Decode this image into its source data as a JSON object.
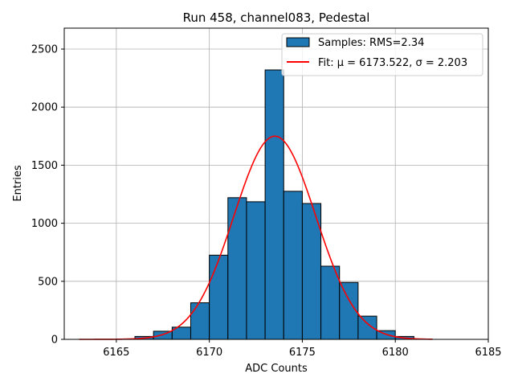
{
  "chart_data": {
    "type": "bar",
    "title": "Run 458, channel083, Pedestal",
    "xlabel": "ADC Counts",
    "ylabel": "Entries",
    "xlim": [
      6162.2,
      6185
    ],
    "ylim": [
      0,
      2680
    ],
    "x_ticks": [
      6165,
      6170,
      6175,
      6180,
      6185
    ],
    "y_ticks": [
      0,
      500,
      1000,
      1500,
      2000,
      2500
    ],
    "grid": true,
    "legend_position": "top-right",
    "bin_width": 1,
    "bins": [
      {
        "left": 6166,
        "value": 25
      },
      {
        "left": 6167,
        "value": 70
      },
      {
        "left": 6168,
        "value": 105
      },
      {
        "left": 6169,
        "value": 315
      },
      {
        "left": 6170,
        "value": 725
      },
      {
        "left": 6171,
        "value": 1220
      },
      {
        "left": 6172,
        "value": 1185
      },
      {
        "left": 6173,
        "value": 2320
      },
      {
        "left": 6174,
        "value": 1275
      },
      {
        "left": 6175,
        "value": 1170
      },
      {
        "left": 6176,
        "value": 630
      },
      {
        "left": 6177,
        "value": 490
      },
      {
        "left": 6178,
        "value": 200
      },
      {
        "left": 6179,
        "value": 75
      },
      {
        "left": 6180,
        "value": 25
      }
    ],
    "histogram_color": "#1f77b4",
    "fit": {
      "label": "Fit: μ = 6173.522, σ = 2.203",
      "mu": 6173.522,
      "sigma": 2.203,
      "amplitude": 1750,
      "x_range": [
        6163,
        6182
      ],
      "color": "#ff0000"
    },
    "series": [
      {
        "name": "Samples: RMS=2.34"
      },
      {
        "name": "Fit: μ = 6173.522, σ = 2.203"
      }
    ]
  }
}
